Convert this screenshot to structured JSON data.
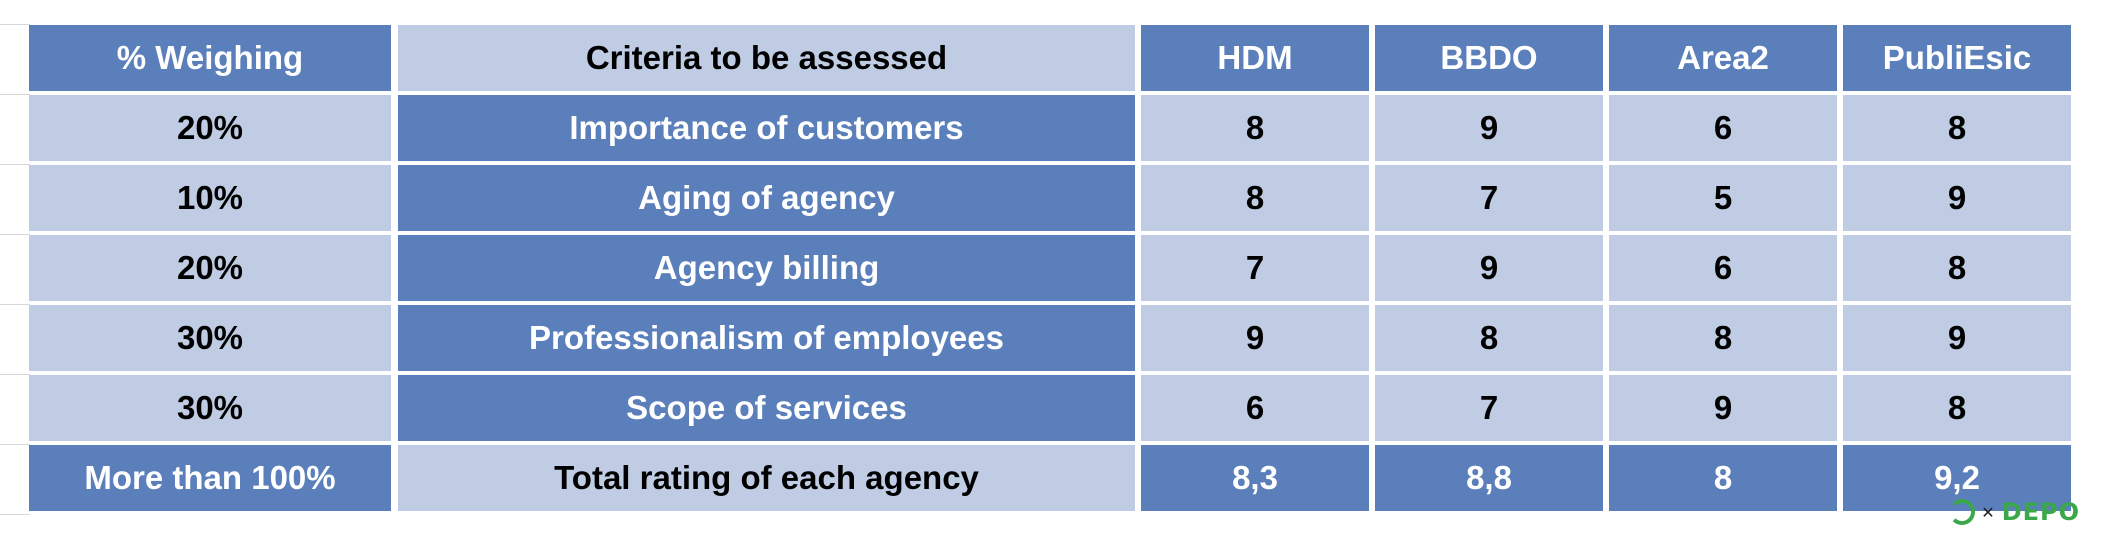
{
  "table": {
    "headers": [
      "% Weighing",
      "Criteria to be assessed",
      "HDM",
      "BBDO",
      "Area2",
      "PubliEsic"
    ],
    "rows": [
      [
        "20%",
        "Importance of customers",
        "8",
        "9",
        "6",
        "8"
      ],
      [
        "10%",
        "Aging of agency",
        "8",
        "7",
        "5",
        "9"
      ],
      [
        "20%",
        "Agency billing",
        "7",
        "9",
        "6",
        "8"
      ],
      [
        "30%",
        "Professionalism of employees",
        "9",
        "8",
        "8",
        "9"
      ],
      [
        "30%",
        "Scope of services",
        "6",
        "7",
        "9",
        "8"
      ]
    ],
    "total_row": [
      "More than 100%",
      "Total rating of each agency",
      "8,3",
      "8,8",
      "8",
      "9,2"
    ]
  },
  "colors": {
    "dark_fill": "#5b7fba",
    "light_fill": "#bfcce3",
    "watermark": "#3aa84a"
  },
  "watermark": {
    "text": "DEPO",
    "prefix": "✕"
  }
}
